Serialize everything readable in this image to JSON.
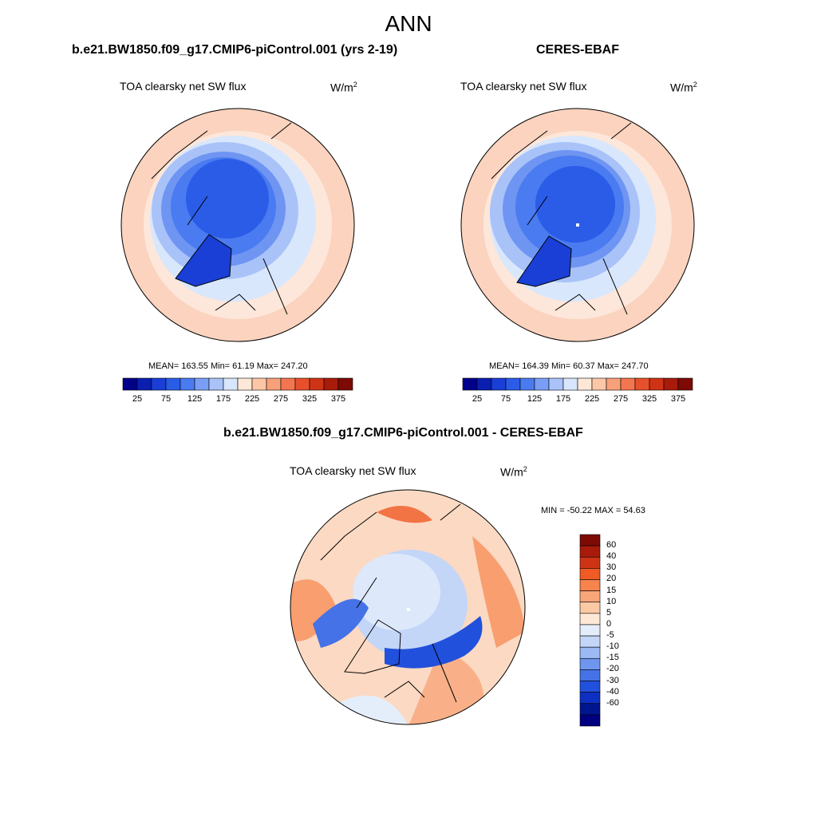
{
  "main_title": "ANN",
  "panels": [
    {
      "title": "b.e21.BW1850.f09_g17.CMIP6-piControl.001 (yrs 2-19)",
      "variable": "TOA clearsky net SW flux",
      "units_base": "W/m",
      "units_exp": "2",
      "stats_text": "MEAN= 163.55  Min=  61.19  Max= 247.20"
    },
    {
      "title": "CERES-EBAF",
      "variable": "TOA clearsky net SW flux",
      "units_base": "W/m",
      "units_exp": "2",
      "stats_text": "MEAN= 164.39  Min=  60.37  Max= 247.70"
    },
    {
      "title": "b.e21.BW1850.f09_g17.CMIP6-piControl.001 - CERES-EBAF",
      "variable": "TOA clearsky net SW flux",
      "units_base": "W/m",
      "units_exp": "2",
      "stats_text": "MIN = -50.22 MAX =  54.63"
    }
  ],
  "colorbar_main": {
    "colors": [
      "#00008b",
      "#0a1fb0",
      "#1a3fd6",
      "#2a5ce8",
      "#4a7bf0",
      "#7a9ef5",
      "#a9c3f9",
      "#d7e6fc",
      "#fde8d8",
      "#fbc7a6",
      "#f8a07a",
      "#f37650",
      "#e8502c",
      "#cf3316",
      "#a81b0b",
      "#7d0a05"
    ],
    "tick_labels": [
      "25",
      "75",
      "125",
      "175",
      "225",
      "275",
      "325",
      "375"
    ]
  },
  "colorbar_diff": {
    "colors": [
      "#7d0a05",
      "#a81b0b",
      "#cf3316",
      "#f05a25",
      "#f6844c",
      "#f9a57a",
      "#fbcaa5",
      "#fde8d6",
      "#e4eefb",
      "#c3d6f8",
      "#9bbaf4",
      "#6e96ee",
      "#4572e6",
      "#2150dc",
      "#0d2fc2",
      "#00168f",
      "#000080"
    ],
    "tick_labels": [
      "60",
      "40",
      "30",
      "20",
      "15",
      "10",
      "5",
      "0",
      "-5",
      "-10",
      "-15",
      "-20",
      "-30",
      "-40",
      "-60"
    ]
  }
}
